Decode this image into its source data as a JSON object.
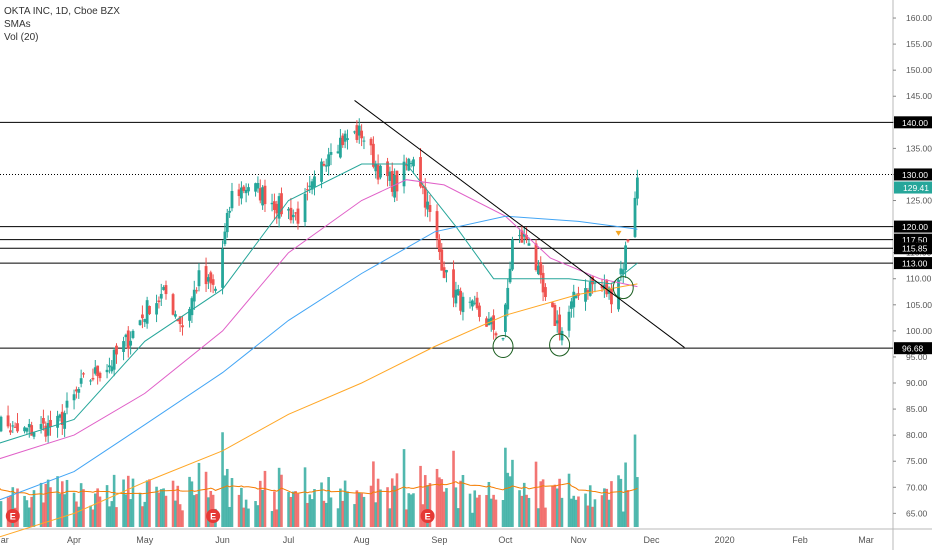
{
  "legend": {
    "title": "OKTA INC, 1D, Cboe BZX",
    "studies": [
      "SMAs",
      "Vol (20)"
    ]
  },
  "chart_data": {
    "type": "candlestick",
    "yaxis": {
      "min": 62.0,
      "max": 162.5,
      "ticks": [
        65,
        70,
        75,
        80,
        85,
        90,
        95,
        100,
        105,
        110,
        115,
        120,
        125,
        130,
        135,
        140,
        145,
        150,
        155,
        160
      ],
      "tick_labels": [
        "65.00",
        "70.00",
        "75.00",
        "80.00",
        "85.00",
        "90.00",
        "95.00",
        "100.00",
        "105.00",
        "110.00",
        "115.00",
        "120.00",
        "125.00",
        "130.00",
        "135.00",
        "140.00",
        "145.00",
        "150.00",
        "155.00",
        "160.00"
      ]
    },
    "xaxis": {
      "labels": [
        {
          "text": "Mar",
          "date": "2019-03-01"
        },
        {
          "text": "Apr",
          "date": "2019-04-01"
        },
        {
          "text": "May",
          "date": "2019-05-01"
        },
        {
          "text": "Jun",
          "date": "2019-06-03"
        },
        {
          "text": "Jul",
          "date": "2019-07-01"
        },
        {
          "text": "Aug",
          "date": "2019-08-01"
        },
        {
          "text": "Sep",
          "date": "2019-09-03"
        },
        {
          "text": "Oct",
          "date": "2019-10-01"
        },
        {
          "text": "Nov",
          "date": "2019-11-01"
        },
        {
          "text": "Dec",
          "date": "2019-12-02"
        },
        {
          "text": "2020",
          "date": "2020-01-02"
        },
        {
          "text": "Feb",
          "date": "2020-02-03"
        },
        {
          "text": "Mar",
          "date": "2020-03-02"
        }
      ]
    },
    "horizontal_levels": [
      {
        "price": 140.0,
        "label": "140.00"
      },
      {
        "price": 130.0,
        "label": "130.00",
        "dotted": true
      },
      {
        "price": 120.0,
        "label": "120.00"
      },
      {
        "price": 117.5,
        "label": "117.50"
      },
      {
        "price": 115.85,
        "label": "115.85"
      },
      {
        "price": 113.0,
        "label": "113.00"
      },
      {
        "price": 96.68,
        "label": "96.68"
      }
    ],
    "last_price": {
      "price": 129.41,
      "label": "129.41",
      "color": "#26a69a"
    },
    "trendline": {
      "from": {
        "date": "2019-07-29",
        "price": 144.2
      },
      "to": {
        "date": "2019-12-16",
        "price": 96.8
      }
    },
    "circles": [
      {
        "date": "2019-09-30",
        "price": 97.0
      },
      {
        "date": "2019-10-24",
        "price": 97.3
      },
      {
        "date": "2019-11-20",
        "price": 108.3
      }
    ],
    "earnings_markers": [
      {
        "label": "E",
        "date": "2019-03-06"
      },
      {
        "label": "E",
        "date": "2019-05-30"
      },
      {
        "label": "E",
        "date": "2019-08-29"
      }
    ],
    "down_arrow": {
      "date": "2019-11-18",
      "price": 118.6
    },
    "anchors": [
      [
        "2019-02-25",
        84.0
      ],
      [
        "2019-03-07",
        80.5
      ],
      [
        "2019-03-15",
        81.0
      ],
      [
        "2019-03-25",
        82.0
      ],
      [
        "2019-04-05",
        90.0
      ],
      [
        "2019-04-17",
        94.0
      ],
      [
        "2019-04-25",
        99.0
      ],
      [
        "2019-05-03",
        105.0
      ],
      [
        "2019-05-10",
        107.0
      ],
      [
        "2019-05-17",
        101.0
      ],
      [
        "2019-05-24",
        110.0
      ],
      [
        "2019-05-31",
        108.0
      ],
      [
        "2019-06-07",
        126.0
      ],
      [
        "2019-06-14",
        128.0
      ],
      [
        "2019-06-21",
        126.0
      ],
      [
        "2019-06-28",
        123.5
      ],
      [
        "2019-07-05",
        122.0
      ],
      [
        "2019-07-12",
        128.0
      ],
      [
        "2019-07-19",
        136.0
      ],
      [
        "2019-07-26",
        137.0
      ],
      [
        "2019-08-01",
        138.0
      ],
      [
        "2019-08-09",
        130.0
      ],
      [
        "2019-08-16",
        128.0
      ],
      [
        "2019-08-23",
        134.0
      ],
      [
        "2019-08-30",
        122.0
      ],
      [
        "2019-09-06",
        110.0
      ],
      [
        "2019-09-13",
        105.0
      ],
      [
        "2019-09-20",
        103.0
      ],
      [
        "2019-09-30",
        99.0
      ],
      [
        "2019-10-04",
        117.0
      ],
      [
        "2019-10-11",
        118.0
      ],
      [
        "2019-10-18",
        105.0
      ],
      [
        "2019-10-25",
        100.0
      ],
      [
        "2019-11-01",
        108.0
      ],
      [
        "2019-11-08",
        109.0
      ],
      [
        "2019-11-15",
        107.0
      ],
      [
        "2019-11-20",
        113.0
      ],
      [
        "2019-11-22",
        118.0
      ],
      [
        "2019-11-26",
        129.41
      ]
    ],
    "sma_series": [
      {
        "color": "#26a69a",
        "points": [
          [
            "2019-02-25",
            78.0
          ],
          [
            "2019-04-01",
            83.0
          ],
          [
            "2019-05-01",
            98.0
          ],
          [
            "2019-06-03",
            108.0
          ],
          [
            "2019-07-01",
            125.0
          ],
          [
            "2019-08-01",
            132.0
          ],
          [
            "2019-08-20",
            132.0
          ],
          [
            "2019-09-10",
            120.0
          ],
          [
            "2019-09-26",
            110.0
          ],
          [
            "2019-10-10",
            110.0
          ],
          [
            "2019-10-28",
            110.0
          ],
          [
            "2019-11-15",
            109.0
          ],
          [
            "2019-11-26",
            113.0
          ]
        ]
      },
      {
        "color": "#e060c8",
        "points": [
          [
            "2019-02-25",
            75.0
          ],
          [
            "2019-04-01",
            80.0
          ],
          [
            "2019-05-01",
            88.0
          ],
          [
            "2019-06-03",
            100.0
          ],
          [
            "2019-07-01",
            115.0
          ],
          [
            "2019-08-01",
            125.0
          ],
          [
            "2019-08-20",
            129.0
          ],
          [
            "2019-09-05",
            128.0
          ],
          [
            "2019-10-01",
            122.0
          ],
          [
            "2019-10-20",
            114.0
          ],
          [
            "2019-11-10",
            110.0
          ],
          [
            "2019-11-26",
            108.5
          ]
        ]
      },
      {
        "color": "#42a5f5",
        "points": [
          [
            "2019-02-25",
            67.0
          ],
          [
            "2019-04-01",
            73.0
          ],
          [
            "2019-05-01",
            82.0
          ],
          [
            "2019-06-03",
            92.0
          ],
          [
            "2019-07-01",
            102.0
          ],
          [
            "2019-08-01",
            111.0
          ],
          [
            "2019-09-01",
            119.0
          ],
          [
            "2019-10-01",
            122.0
          ],
          [
            "2019-11-01",
            121.0
          ],
          [
            "2019-11-26",
            119.5
          ]
        ]
      },
      {
        "color": "#ffa726",
        "points": [
          [
            "2019-02-25",
            60.0
          ],
          [
            "2019-04-01",
            65.0
          ],
          [
            "2019-05-01",
            71.0
          ],
          [
            "2019-06-03",
            77.0
          ],
          [
            "2019-07-01",
            84.0
          ],
          [
            "2019-08-01",
            90.0
          ],
          [
            "2019-09-01",
            97.0
          ],
          [
            "2019-10-01",
            103.0
          ],
          [
            "2019-11-01",
            107.0
          ],
          [
            "2019-11-26",
            109.0
          ]
        ]
      }
    ],
    "volume": {
      "up_color": "#26a69a",
      "down_color": "#ef5350",
      "ma_color": "#f57c00",
      "max_shown": 40
    }
  }
}
